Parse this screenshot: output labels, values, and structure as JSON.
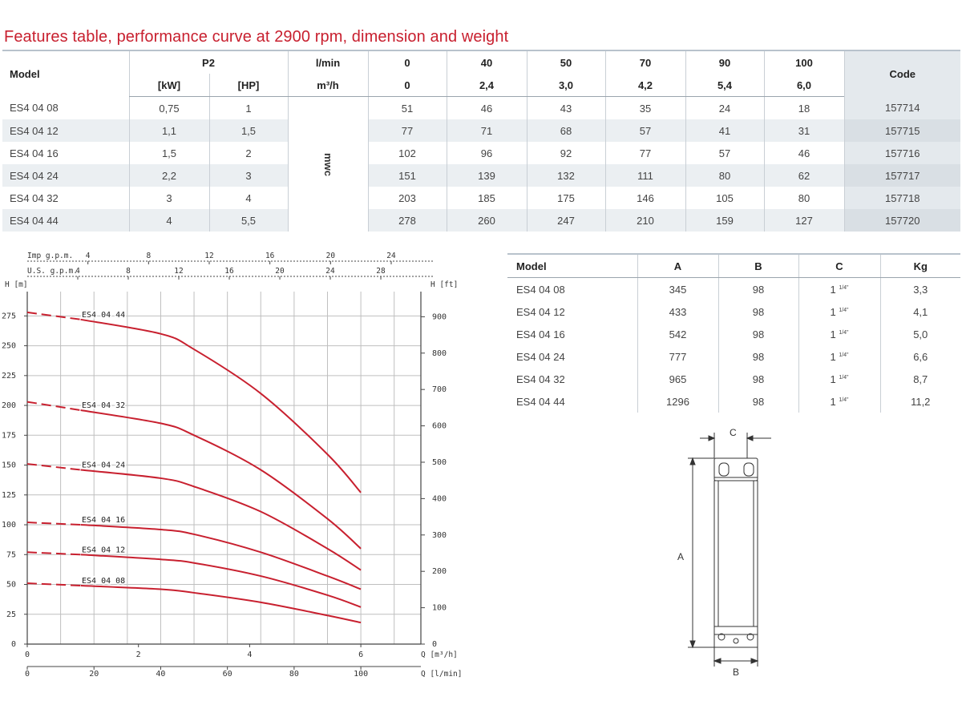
{
  "title": "Features table, performance curve at 2900 rpm, dimension and weight",
  "features": {
    "header_model": "Model",
    "header_p2": "P2",
    "header_kw": "[kW]",
    "header_hp": "[HP]",
    "header_lmin": "l/min",
    "header_m3h": "m³/h",
    "header_code": "Code",
    "mwc": "mwc",
    "flows_lmin": [
      "0",
      "40",
      "50",
      "70",
      "90",
      "100"
    ],
    "flows_m3h": [
      "0",
      "2,4",
      "3,0",
      "4,2",
      "5,4",
      "6,0"
    ],
    "rows": [
      {
        "model": "ES4 04 08",
        "kw": "0,75",
        "hp": "1",
        "h": [
          "51",
          "46",
          "43",
          "35",
          "24",
          "18"
        ],
        "code": "157714"
      },
      {
        "model": "ES4 04 12",
        "kw": "1,1",
        "hp": "1,5",
        "h": [
          "77",
          "71",
          "68",
          "57",
          "41",
          "31"
        ],
        "code": "157715"
      },
      {
        "model": "ES4 04 16",
        "kw": "1,5",
        "hp": "2",
        "h": [
          "102",
          "96",
          "92",
          "77",
          "57",
          "46"
        ],
        "code": "157716"
      },
      {
        "model": "ES4 04 24",
        "kw": "2,2",
        "hp": "3",
        "h": [
          "151",
          "139",
          "132",
          "111",
          "80",
          "62"
        ],
        "code": "157717"
      },
      {
        "model": "ES4 04 32",
        "kw": "3",
        "hp": "4",
        "h": [
          "203",
          "185",
          "175",
          "146",
          "105",
          "80"
        ],
        "code": "157718"
      },
      {
        "model": "ES4 04 44",
        "kw": "4",
        "hp": "5,5",
        "h": [
          "278",
          "260",
          "247",
          "210",
          "159",
          "127"
        ],
        "code": "157720"
      }
    ]
  },
  "dimensions": {
    "headers": [
      "Model",
      "A",
      "B",
      "C",
      "Kg"
    ],
    "c_whole": "1",
    "c_frac": "1/4\"",
    "rows": [
      {
        "model": "ES4 04 08",
        "a": "345",
        "b": "98",
        "kg": "3,3"
      },
      {
        "model": "ES4 04 12",
        "a": "433",
        "b": "98",
        "kg": "4,1"
      },
      {
        "model": "ES4 04 16",
        "a": "542",
        "b": "98",
        "kg": "5,0"
      },
      {
        "model": "ES4 04 24",
        "a": "777",
        "b": "98",
        "kg": "6,6"
      },
      {
        "model": "ES4 04 32",
        "a": "965",
        "b": "98",
        "kg": "8,7"
      },
      {
        "model": "ES4 04 44",
        "a": "1296",
        "b": "98",
        "kg": "11,2"
      }
    ]
  },
  "chart_data": {
    "type": "line",
    "title": "",
    "xlabel": "Q [l/min]",
    "xlabel_m3h": "Q [m³/h]",
    "ylabel": "H [m]",
    "ylabel_right": "H [ft]",
    "imp_label": "Imp g.p.m.",
    "us_label": "U.S. g.p.m.",
    "xlim": [
      0,
      118
    ],
    "ylim": [
      0,
      290
    ],
    "yticks": [
      0,
      25,
      50,
      75,
      100,
      125,
      150,
      175,
      200,
      225,
      250,
      275
    ],
    "xticks_lmin": [
      0,
      20,
      40,
      60,
      80,
      100
    ],
    "xticks_m3h": [
      0,
      2,
      4,
      6
    ],
    "ft_ticks": [
      0,
      100,
      200,
      300,
      400,
      500,
      600,
      700,
      800,
      900
    ],
    "imp_ticks": [
      4,
      8,
      12,
      16,
      20,
      24
    ],
    "us_ticks": [
      4,
      8,
      12,
      16,
      20,
      24,
      28
    ],
    "grid": true,
    "dashed_until_x": 16,
    "series": [
      {
        "name": "ES4 04 44",
        "x": [
          0,
          16,
          40,
          50,
          70,
          90,
          100
        ],
        "y": [
          278,
          272,
          260,
          247,
          210,
          159,
          127
        ]
      },
      {
        "name": "ES4 04 32",
        "x": [
          0,
          16,
          40,
          50,
          70,
          90,
          100
        ],
        "y": [
          203,
          196,
          185,
          175,
          146,
          105,
          80
        ]
      },
      {
        "name": "ES4 04 24",
        "x": [
          0,
          16,
          40,
          50,
          70,
          90,
          100
        ],
        "y": [
          151,
          146,
          139,
          132,
          111,
          80,
          62
        ]
      },
      {
        "name": "ES4 04 16",
        "x": [
          0,
          16,
          40,
          50,
          70,
          90,
          100
        ],
        "y": [
          102,
          100,
          96,
          92,
          77,
          57,
          46
        ]
      },
      {
        "name": "ES4 04 12",
        "x": [
          0,
          16,
          40,
          50,
          70,
          90,
          100
        ],
        "y": [
          77,
          75,
          71,
          68,
          57,
          41,
          31
        ]
      },
      {
        "name": "ES4 04 08",
        "x": [
          0,
          16,
          40,
          50,
          70,
          90,
          100
        ],
        "y": [
          51,
          49,
          46,
          43,
          35,
          24,
          18
        ]
      }
    ],
    "colors": {
      "curve": "#c8202f",
      "grid": "#bfbfbf",
      "axis": "#444444"
    }
  },
  "drawing": {
    "label_a": "A",
    "label_b": "B",
    "label_c": "C"
  }
}
